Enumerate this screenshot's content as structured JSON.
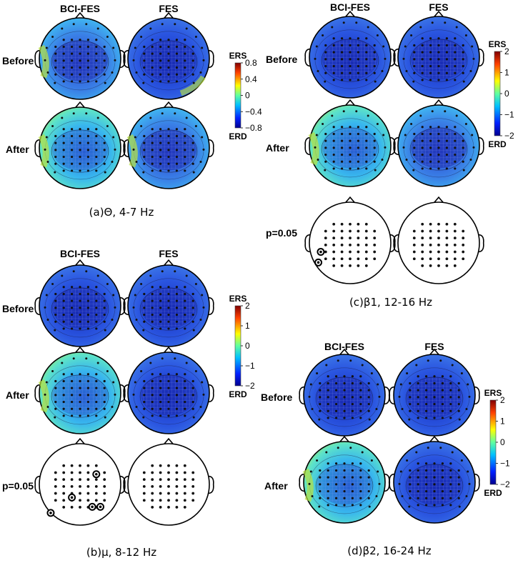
{
  "panels": [
    {
      "id": "a",
      "caption": "(a)Θ, 4-7 Hz",
      "col_labels": [
        "BCI-FES",
        "FES"
      ],
      "row_labels": [
        "Before",
        "After"
      ],
      "colorbar": {
        "top_label": "ERS",
        "bottom_label": "ERD",
        "ticks": [
          "0.8",
          "0.4",
          "0",
          "−0.4",
          "−0.8"
        ]
      }
    },
    {
      "id": "b",
      "caption": "(b)μ, 8-12 Hz",
      "col_labels": [
        "BCI-FES",
        "FES"
      ],
      "row_labels": [
        "Before",
        "After",
        "p=0.05"
      ],
      "colorbar": {
        "top_label": "ERS",
        "bottom_label": "ERD",
        "ticks": [
          "2",
          "1",
          "0",
          "−1",
          "−2"
        ]
      }
    },
    {
      "id": "c",
      "caption": "(c)β1, 12-16 Hz",
      "col_labels": [
        "BCI-FES",
        "FES"
      ],
      "row_labels": [
        "Before",
        "After",
        "p=0.05"
      ],
      "colorbar": {
        "top_label": "ERS",
        "bottom_label": "ERD",
        "ticks": [
          "2",
          "1",
          "0",
          "−1",
          "−2"
        ]
      }
    },
    {
      "id": "d",
      "caption": "(d)β2, 16-24 Hz",
      "col_labels": [
        "BCI-FES",
        "FES"
      ],
      "row_labels": [
        "Before",
        "After"
      ],
      "colorbar": {
        "top_label": "ERS",
        "bottom_label": "ERD",
        "ticks": [
          "2",
          "1",
          "0",
          "−1",
          "−2"
        ]
      }
    }
  ],
  "colors": {
    "erd_deep": "#1a2fb0",
    "neutral": "#2fd0e0",
    "ers_deep": "#b01010"
  }
}
